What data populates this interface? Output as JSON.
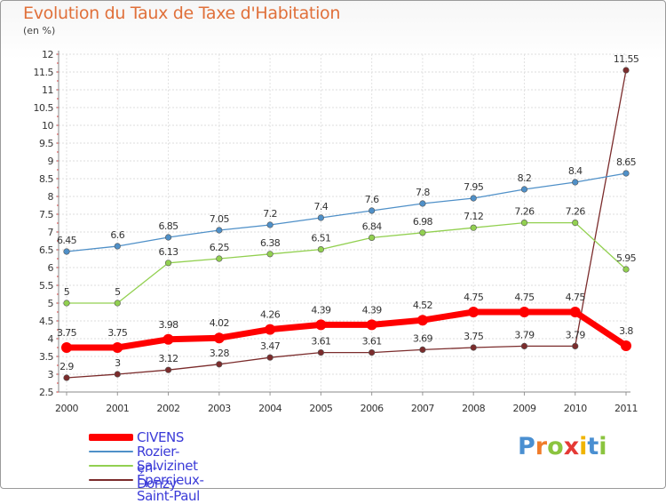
{
  "chart_data": {
    "type": "line",
    "title": "Evolution du Taux de Taxe d'Habitation",
    "subtitle": "(en %)",
    "categories": [
      "2000",
      "2001",
      "2002",
      "2003",
      "2004",
      "2005",
      "2006",
      "2007",
      "2008",
      "2009",
      "2010",
      "2011"
    ],
    "ylim": [
      2.5,
      12
    ],
    "yticks": [
      "2.5",
      "3",
      "3.5",
      "4",
      "4.5",
      "5",
      "5.5",
      "6",
      "6.5",
      "7",
      "7.5",
      "8",
      "8.5",
      "9",
      "9.5",
      "10",
      "10.5",
      "11",
      "11.5",
      "12"
    ],
    "series": [
      {
        "name": "CIVENS",
        "color": "#ff0000",
        "values": [
          3.75,
          3.75,
          3.98,
          4.02,
          4.26,
          4.39,
          4.39,
          4.52,
          4.75,
          4.75,
          4.75,
          3.8
        ],
        "labels": [
          "3.75",
          "3.75",
          "3.98",
          "4.02",
          "4.26",
          "4.39",
          "4.39",
          "4.52",
          "4.75",
          "4.75",
          "4.75",
          "3.8"
        ]
      },
      {
        "name": "Rozier-en-Donzy",
        "color": "#4f90c8",
        "values": [
          6.45,
          6.6,
          6.85,
          7.05,
          7.2,
          7.4,
          7.6,
          7.8,
          7.95,
          8.2,
          8.4,
          8.65
        ],
        "labels": [
          "6.45",
          "6.6",
          "6.85",
          "7.05",
          "7.2",
          "7.4",
          "7.6",
          "7.8",
          "7.95",
          "8.2",
          "8.4",
          "8.65"
        ]
      },
      {
        "name": "Salvizinet",
        "color": "#92d050",
        "values": [
          5,
          5,
          6.13,
          6.25,
          6.38,
          6.51,
          6.84,
          6.98,
          7.12,
          7.26,
          7.26,
          5.95
        ],
        "labels": [
          "5",
          "5",
          "6.13",
          "6.25",
          "6.38",
          "6.51",
          "6.84",
          "6.98",
          "7.12",
          "7.26",
          "7.26",
          "5.95"
        ]
      },
      {
        "name": "Épercieux-Saint-Paul",
        "color": "#7b2c2c",
        "values": [
          2.9,
          3,
          3.12,
          3.28,
          3.47,
          3.61,
          3.61,
          3.69,
          3.75,
          3.79,
          3.79,
          11.55
        ],
        "labels": [
          "2.9",
          "3",
          "3.12",
          "3.28",
          "3.47",
          "3.61",
          "3.61",
          "3.69",
          "3.75",
          "3.79",
          "3.79",
          "11.55"
        ]
      }
    ]
  },
  "logo": {
    "letters": [
      "P",
      "r",
      "o",
      "x",
      "i",
      "t",
      "i"
    ],
    "colors": [
      "#4a8fd1",
      "#f07c2a",
      "#8bc43f",
      "#e53935",
      "#f0b400",
      "#4a8fd1",
      "#8bc43f"
    ]
  }
}
